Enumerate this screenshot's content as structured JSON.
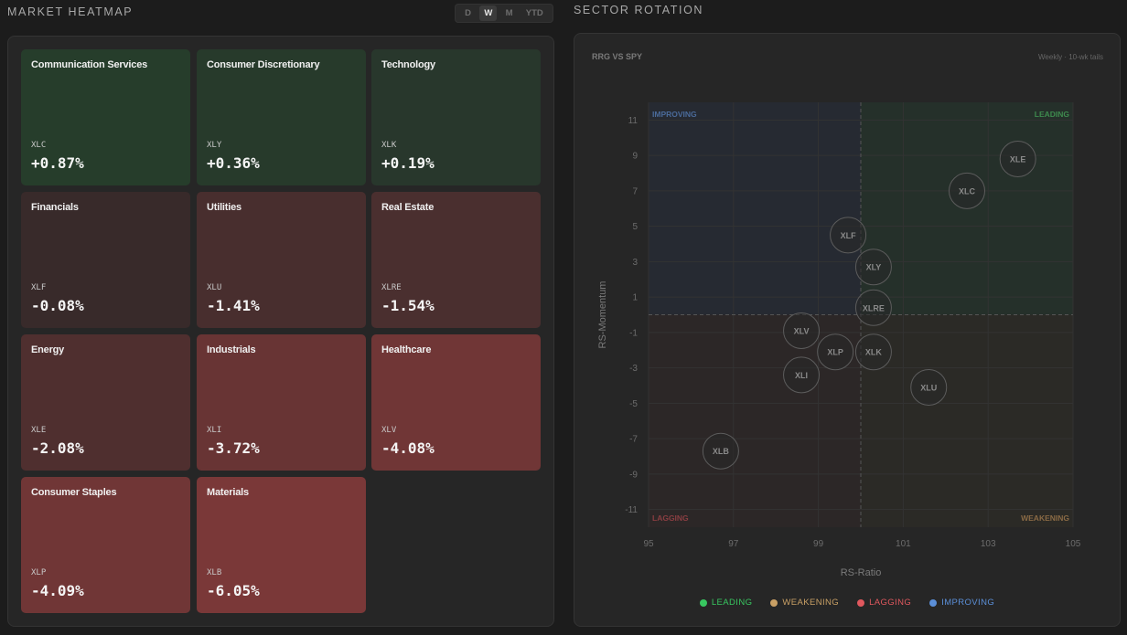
{
  "heatmap": {
    "title": "MARKET HEATMAP",
    "timeframes": [
      "D",
      "W",
      "M",
      "YTD"
    ],
    "active_timeframe": "W",
    "tiles": [
      {
        "name": "Communication Services",
        "ticker": "XLC",
        "change": "+0.87%",
        "color": "#263d2b"
      },
      {
        "name": "Consumer Discretionary",
        "ticker": "XLY",
        "change": "+0.36%",
        "color": "#273a2b"
      },
      {
        "name": "Technology",
        "ticker": "XLK",
        "change": "+0.19%",
        "color": "#28372c"
      },
      {
        "name": "Financials",
        "ticker": "XLF",
        "change": "-0.08%",
        "color": "#382a2a"
      },
      {
        "name": "Utilities",
        "ticker": "XLU",
        "change": "-1.41%",
        "color": "#482e2e"
      },
      {
        "name": "Real Estate",
        "ticker": "XLRE",
        "change": "-1.54%",
        "color": "#4a2f2f"
      },
      {
        "name": "Energy",
        "ticker": "XLE",
        "change": "-2.08%",
        "color": "#4f2f2f"
      },
      {
        "name": "Industrials",
        "ticker": "XLI",
        "change": "-3.72%",
        "color": "#683434"
      },
      {
        "name": "Healthcare",
        "ticker": "XLV",
        "change": "-4.08%",
        "color": "#703636"
      },
      {
        "name": "Consumer Staples",
        "ticker": "XLP",
        "change": "-4.09%",
        "color": "#703636"
      },
      {
        "name": "Materials",
        "ticker": "XLB",
        "change": "-6.05%",
        "color": "#7a3838"
      }
    ]
  },
  "rotation": {
    "title": "SECTOR ROTATION",
    "chart_title": "RRG VS SPY",
    "subtitle": "Weekly · 10-wk tails"
  },
  "chart_data": {
    "type": "scatter",
    "title": "RRG VS SPY",
    "xlabel": "RS-Ratio",
    "ylabel": "RS-Momentum",
    "xlim": [
      95,
      105
    ],
    "ylim": [
      -12,
      12
    ],
    "xticks": [
      95,
      97,
      99,
      101,
      103,
      105
    ],
    "yticks": [
      11,
      9,
      7,
      5,
      3,
      1,
      -1,
      -3,
      -5,
      -7,
      -9,
      -11
    ],
    "center": {
      "x": 100,
      "y": 0
    },
    "quadrants": {
      "top_left": "IMPROVING",
      "top_right": "LEADING",
      "bottom_left": "LAGGING",
      "bottom_right": "WEAKENING"
    },
    "points": [
      {
        "label": "XLE",
        "x": 103.7,
        "y": 8.8
      },
      {
        "label": "XLC",
        "x": 102.5,
        "y": 7.0
      },
      {
        "label": "XLF",
        "x": 99.7,
        "y": 4.5
      },
      {
        "label": "XLY",
        "x": 100.3,
        "y": 2.7
      },
      {
        "label": "XLRE",
        "x": 100.3,
        "y": 0.4
      },
      {
        "label": "XLV",
        "x": 98.6,
        "y": -0.9
      },
      {
        "label": "XLP",
        "x": 99.4,
        "y": -2.1
      },
      {
        "label": "XLK",
        "x": 100.3,
        "y": -2.1
      },
      {
        "label": "XLI",
        "x": 98.6,
        "y": -3.4
      },
      {
        "label": "XLU",
        "x": 101.6,
        "y": -4.1
      },
      {
        "label": "XLB",
        "x": 96.7,
        "y": -7.7
      }
    ]
  },
  "legend": [
    {
      "label": "LEADING",
      "color": "#38c760"
    },
    {
      "label": "WEAKENING",
      "color": "#c9a065"
    },
    {
      "label": "LAGGING",
      "color": "#e0585e"
    },
    {
      "label": "IMPROVING",
      "color": "#5b8fd8"
    }
  ]
}
